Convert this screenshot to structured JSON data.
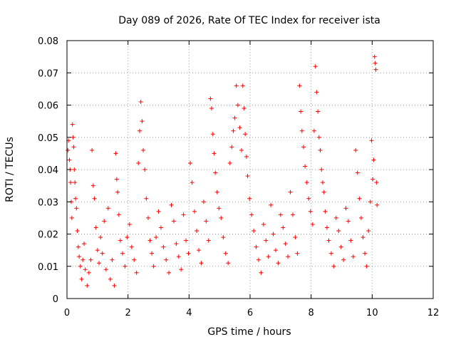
{
  "chart_data": {
    "type": "scatter",
    "title": "Day 089 of 2026, Rate Of TEC Index for receiver ista",
    "xlabel": "GPS time / hours",
    "ylabel": "ROTI / TECUs",
    "xlim": [
      0,
      12
    ],
    "ylim": [
      0,
      0.08
    ],
    "xticks": [
      0,
      2,
      4,
      6,
      8,
      10,
      12
    ],
    "xtick_labels": [
      "0",
      "2",
      "4",
      "6",
      "8",
      "10",
      "12"
    ],
    "yticks": [
      0,
      0.01,
      0.02,
      0.03,
      0.04,
      0.05,
      0.06,
      0.07,
      0.08
    ],
    "ytick_labels": [
      "0",
      "0.01",
      "0.02",
      "0.03",
      "0.04",
      "0.05",
      "0.06",
      "0.07",
      "0.08"
    ],
    "grid": true,
    "marker": "plus",
    "series_color": "#ff0000",
    "series": [
      {
        "name": "ROTI",
        "points": [
          [
            0.03,
            0.046
          ],
          [
            0.05,
            0.049
          ],
          [
            0.08,
            0.043
          ],
          [
            0.1,
            0.04
          ],
          [
            0.12,
            0.036
          ],
          [
            0.14,
            0.03
          ],
          [
            0.16,
            0.025
          ],
          [
            0.18,
            0.054
          ],
          [
            0.2,
            0.05
          ],
          [
            0.22,
            0.047
          ],
          [
            0.24,
            0.04
          ],
          [
            0.26,
            0.036
          ],
          [
            0.28,
            0.031
          ],
          [
            0.31,
            0.028
          ],
          [
            0.34,
            0.021
          ],
          [
            0.37,
            0.016
          ],
          [
            0.4,
            0.013
          ],
          [
            0.44,
            0.01
          ],
          [
            0.48,
            0.006
          ],
          [
            0.52,
            0.012
          ],
          [
            0.56,
            0.017
          ],
          [
            0.6,
            0.009
          ],
          [
            0.66,
            0.004
          ],
          [
            0.72,
            0.008
          ],
          [
            0.78,
            0.012
          ],
          [
            0.82,
            0.046
          ],
          [
            0.86,
            0.035
          ],
          [
            0.9,
            0.031
          ],
          [
            0.95,
            0.022
          ],
          [
            1.0,
            0.015
          ],
          [
            1.05,
            0.011
          ],
          [
            1.1,
            0.019
          ],
          [
            1.16,
            0.014
          ],
          [
            1.22,
            0.024
          ],
          [
            1.28,
            0.009
          ],
          [
            1.35,
            0.028
          ],
          [
            1.42,
            0.006
          ],
          [
            1.48,
            0.012
          ],
          [
            1.55,
            0.004
          ],
          [
            1.6,
            0.045
          ],
          [
            1.63,
            0.037
          ],
          [
            1.66,
            0.033
          ],
          [
            1.7,
            0.026
          ],
          [
            1.75,
            0.018
          ],
          [
            1.82,
            0.014
          ],
          [
            1.9,
            0.01
          ],
          [
            1.97,
            0.019
          ],
          [
            2.05,
            0.023
          ],
          [
            2.12,
            0.016
          ],
          [
            2.2,
            0.012
          ],
          [
            2.28,
            0.008
          ],
          [
            2.34,
            0.042
          ],
          [
            2.38,
            0.052
          ],
          [
            2.42,
            0.061
          ],
          [
            2.46,
            0.055
          ],
          [
            2.5,
            0.046
          ],
          [
            2.55,
            0.04
          ],
          [
            2.6,
            0.031
          ],
          [
            2.66,
            0.025
          ],
          [
            2.72,
            0.018
          ],
          [
            2.78,
            0.014
          ],
          [
            2.84,
            0.01
          ],
          [
            2.92,
            0.019
          ],
          [
            3.0,
            0.027
          ],
          [
            3.08,
            0.022
          ],
          [
            3.16,
            0.016
          ],
          [
            3.25,
            0.012
          ],
          [
            3.34,
            0.008
          ],
          [
            3.42,
            0.029
          ],
          [
            3.5,
            0.024
          ],
          [
            3.58,
            0.017
          ],
          [
            3.66,
            0.013
          ],
          [
            3.74,
            0.009
          ],
          [
            3.82,
            0.026
          ],
          [
            3.9,
            0.018
          ],
          [
            3.98,
            0.014
          ],
          [
            4.04,
            0.042
          ],
          [
            4.1,
            0.036
          ],
          [
            4.18,
            0.027
          ],
          [
            4.25,
            0.021
          ],
          [
            4.32,
            0.015
          ],
          [
            4.4,
            0.011
          ],
          [
            4.48,
            0.03
          ],
          [
            4.56,
            0.024
          ],
          [
            4.64,
            0.018
          ],
          [
            4.7,
            0.062
          ],
          [
            4.74,
            0.059
          ],
          [
            4.78,
            0.051
          ],
          [
            4.82,
            0.045
          ],
          [
            4.86,
            0.039
          ],
          [
            4.92,
            0.033
          ],
          [
            4.98,
            0.028
          ],
          [
            5.05,
            0.025
          ],
          [
            5.12,
            0.019
          ],
          [
            5.2,
            0.014
          ],
          [
            5.28,
            0.011
          ],
          [
            5.34,
            0.042
          ],
          [
            5.4,
            0.047
          ],
          [
            5.45,
            0.052
          ],
          [
            5.5,
            0.056
          ],
          [
            5.55,
            0.066
          ],
          [
            5.6,
            0.06
          ],
          [
            5.66,
            0.053
          ],
          [
            5.72,
            0.046
          ],
          [
            5.76,
            0.066
          ],
          [
            5.8,
            0.059
          ],
          [
            5.84,
            0.051
          ],
          [
            5.88,
            0.044
          ],
          [
            5.92,
            0.038
          ],
          [
            5.98,
            0.031
          ],
          [
            6.05,
            0.026
          ],
          [
            6.12,
            0.021
          ],
          [
            6.2,
            0.016
          ],
          [
            6.28,
            0.012
          ],
          [
            6.36,
            0.008
          ],
          [
            6.44,
            0.023
          ],
          [
            6.52,
            0.018
          ],
          [
            6.6,
            0.013
          ],
          [
            6.68,
            0.029
          ],
          [
            6.76,
            0.02
          ],
          [
            6.84,
            0.015
          ],
          [
            6.92,
            0.011
          ],
          [
            7.0,
            0.026
          ],
          [
            7.08,
            0.022
          ],
          [
            7.16,
            0.017
          ],
          [
            7.24,
            0.013
          ],
          [
            7.32,
            0.033
          ],
          [
            7.4,
            0.026
          ],
          [
            7.48,
            0.019
          ],
          [
            7.55,
            0.014
          ],
          [
            7.62,
            0.066
          ],
          [
            7.66,
            0.058
          ],
          [
            7.7,
            0.052
          ],
          [
            7.75,
            0.047
          ],
          [
            7.8,
            0.041
          ],
          [
            7.86,
            0.036
          ],
          [
            7.92,
            0.031
          ],
          [
            7.98,
            0.027
          ],
          [
            8.05,
            0.023
          ],
          [
            8.1,
            0.052
          ],
          [
            8.14,
            0.072
          ],
          [
            8.18,
            0.064
          ],
          [
            8.22,
            0.058
          ],
          [
            8.26,
            0.05
          ],
          [
            8.3,
            0.046
          ],
          [
            8.34,
            0.04
          ],
          [
            8.38,
            0.036
          ],
          [
            8.42,
            0.033
          ],
          [
            8.46,
            0.027
          ],
          [
            8.52,
            0.022
          ],
          [
            8.58,
            0.018
          ],
          [
            8.66,
            0.014
          ],
          [
            8.74,
            0.01
          ],
          [
            8.82,
            0.025
          ],
          [
            8.9,
            0.021
          ],
          [
            8.98,
            0.016
          ],
          [
            9.06,
            0.012
          ],
          [
            9.14,
            0.028
          ],
          [
            9.22,
            0.024
          ],
          [
            9.3,
            0.018
          ],
          [
            9.38,
            0.013
          ],
          [
            9.46,
            0.046
          ],
          [
            9.52,
            0.039
          ],
          [
            9.58,
            0.031
          ],
          [
            9.64,
            0.025
          ],
          [
            9.7,
            0.019
          ],
          [
            9.76,
            0.014
          ],
          [
            9.82,
            0.01
          ],
          [
            9.88,
            0.021
          ],
          [
            9.94,
            0.03
          ],
          [
            9.98,
            0.049
          ],
          [
            10.02,
            0.037
          ],
          [
            10.05,
            0.043
          ],
          [
            10.08,
            0.075
          ],
          [
            10.1,
            0.073
          ],
          [
            10.12,
            0.071
          ],
          [
            10.14,
            0.036
          ],
          [
            10.16,
            0.029
          ]
        ]
      }
    ]
  }
}
